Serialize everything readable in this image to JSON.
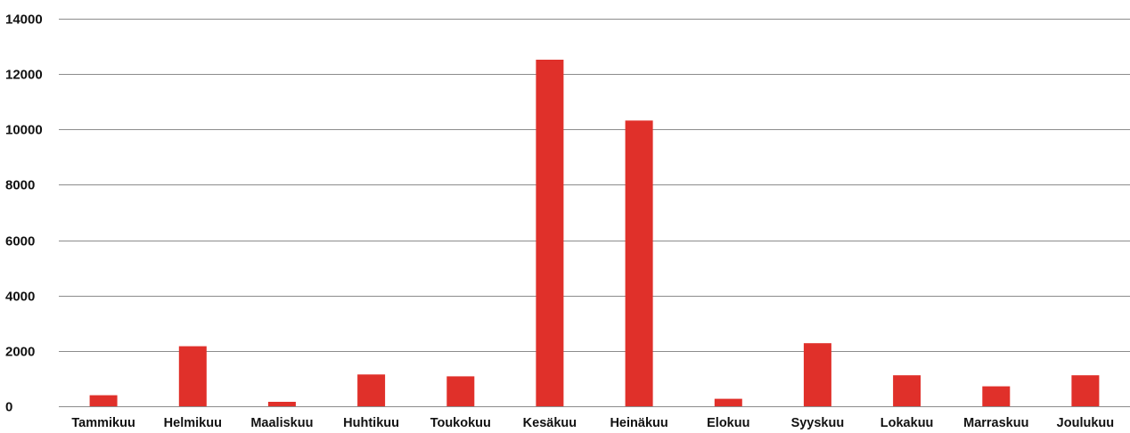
{
  "chart_data": {
    "type": "bar",
    "categories": [
      "Tammikuu",
      "Helmikuu",
      "Maaliskuu",
      "Huhtikuu",
      "Toukokuu",
      "Kesäkuu",
      "Heinäkuu",
      "Elokuu",
      "Syyskuu",
      "Lokakuu",
      "Marraskuu",
      "Joulukuu"
    ],
    "values": [
      400,
      2170,
      160,
      1150,
      1080,
      12520,
      10320,
      270,
      2280,
      1120,
      720,
      1120
    ],
    "yticks": [
      "0",
      "2000",
      "4000",
      "6000",
      "8000",
      "10000",
      "12000",
      "14000"
    ],
    "ylim": [
      0,
      14000
    ],
    "grid": true,
    "legend": "none",
    "bar_color": "#e0302a",
    "grid_color": "#8c8c8c"
  }
}
